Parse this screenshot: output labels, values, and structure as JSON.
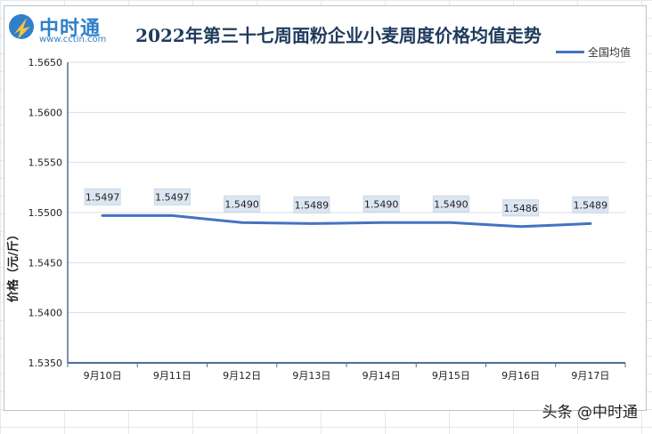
{
  "logo": {
    "name": "中时通",
    "url": "www.cctin.com"
  },
  "chart_data": {
    "type": "line",
    "title": "2022年第三十七周面粉企业小麦周度价格均值走势",
    "xlabel": "",
    "ylabel": "价格（元/斤）",
    "categories": [
      "9月10日",
      "9月11日",
      "9月12日",
      "9月13日",
      "9月14日",
      "9月15日",
      "9月16日",
      "9月17日"
    ],
    "series": [
      {
        "name": "全国均值",
        "values": [
          1.5497,
          1.5497,
          1.549,
          1.5489,
          1.549,
          1.549,
          1.5486,
          1.5489
        ]
      }
    ],
    "ylim": [
      1.535,
      1.565
    ],
    "yticks": [
      1.565,
      1.56,
      1.555,
      1.55,
      1.545,
      1.54,
      1.535
    ],
    "ytick_labels": [
      "1.5650",
      "1.5600",
      "1.5550",
      "1.5500",
      "1.5450",
      "1.5400",
      "1.5350"
    ],
    "data_labels": [
      "1.5497",
      "1.5497",
      "1.5490",
      "1.5489",
      "1.5490",
      "1.5490",
      "1.5486",
      "1.5489"
    ],
    "grid": true,
    "legend": "top-right",
    "line_color": "#4472c4",
    "label_bg_color": "#dce6f2"
  },
  "source_watermark": "头条 @中时通"
}
